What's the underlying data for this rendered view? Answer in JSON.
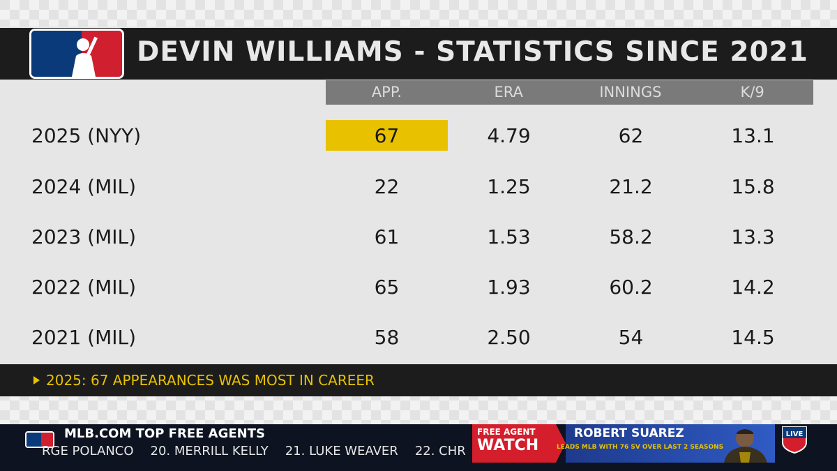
{
  "title": "DEVIN WILLIAMS - STATISTICS SINCE 2021",
  "columns": [
    "APP.",
    "ERA",
    "INNINGS",
    "K/9"
  ],
  "rows": [
    {
      "label": "2025 (NYY)",
      "values": [
        "67",
        "4.79",
        "62",
        "13.1"
      ]
    },
    {
      "label": "2024 (MIL)",
      "values": [
        "22",
        "1.25",
        "21.2",
        "15.8"
      ]
    },
    {
      "label": "2023 (MIL)",
      "values": [
        "61",
        "1.53",
        "58.2",
        "13.3"
      ]
    },
    {
      "label": "2022 (MIL)",
      "values": [
        "65",
        "1.93",
        "60.2",
        "14.2"
      ]
    },
    {
      "label": "2021 (MIL)",
      "values": [
        "58",
        "2.50",
        "54",
        "14.5"
      ]
    }
  ],
  "note": "2025: 67 APPEARANCES WAS MOST IN CAREER",
  "ticker": {
    "title": "MLB.COM TOP FREE AGENTS",
    "items": [
      "RGE POLANCO",
      "20. MERRILL KELLY",
      "21. LUKE WEAVER",
      "22. CHR"
    ]
  },
  "free_agent_watch": {
    "small_label": "FREE AGENT",
    "big_label": "WATCH",
    "name": "ROBERT SUAREZ",
    "description": "LEADS MLB WITH 76 SV OVER LAST 2 SEASONS"
  },
  "live_badge": "LIVE",
  "colors": {
    "highlight": "#e8c200",
    "title_bar": "#1c1c1c",
    "header_row": "#7a7a7a",
    "fa_red": "#d41e2c",
    "fa_blue": "#1e3a8c"
  },
  "icons": [
    "mlb-logo",
    "note-arrow-icon",
    "live-badge-icon"
  ]
}
